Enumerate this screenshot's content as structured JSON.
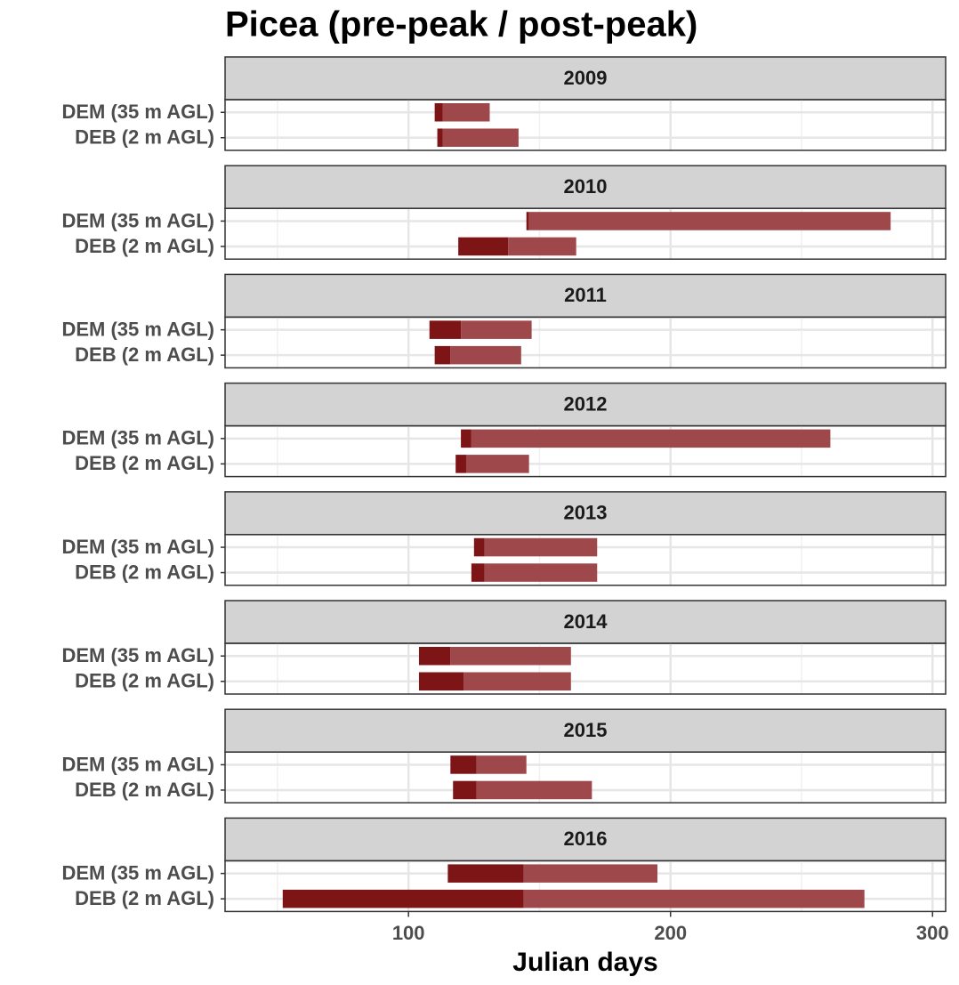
{
  "chart_data": {
    "type": "floating-bar",
    "title": "Picea (pre-peak / post-peak)",
    "x_label": "Julian days",
    "categories": [
      "DEM (35 m AGL)",
      "DEB (2 m AGL)"
    ],
    "colors": [
      "#7d1416",
      "#9e484b"
    ],
    "xlim": [
      30,
      305
    ],
    "xticks": [
      100,
      200,
      300
    ],
    "grid": true,
    "panels": [
      {
        "title": "2009",
        "start": [
          110,
          111
        ],
        "peak": [
          113,
          113
        ],
        "end": [
          131,
          142
        ]
      },
      {
        "title": "2010",
        "start": [
          145,
          119
        ],
        "peak": [
          146,
          138
        ],
        "end": [
          284,
          164
        ]
      },
      {
        "title": "2011",
        "start": [
          108,
          110
        ],
        "peak": [
          120,
          116
        ],
        "end": [
          147,
          143
        ]
      },
      {
        "title": "2012",
        "start": [
          120,
          118
        ],
        "peak": [
          124,
          122
        ],
        "end": [
          261,
          146
        ]
      },
      {
        "title": "2013",
        "start": [
          125,
          124
        ],
        "peak": [
          129,
          129
        ],
        "end": [
          172,
          172
        ]
      },
      {
        "title": "2014",
        "start": [
          104,
          104
        ],
        "peak": [
          116,
          121
        ],
        "end": [
          162,
          162
        ]
      },
      {
        "title": "2015",
        "start": [
          116,
          117
        ],
        "peak": [
          126,
          126
        ],
        "end": [
          145,
          170
        ]
      },
      {
        "title": "2016",
        "start": [
          115,
          52
        ],
        "peak": [
          144,
          144
        ],
        "end": [
          195,
          274
        ]
      }
    ]
  }
}
